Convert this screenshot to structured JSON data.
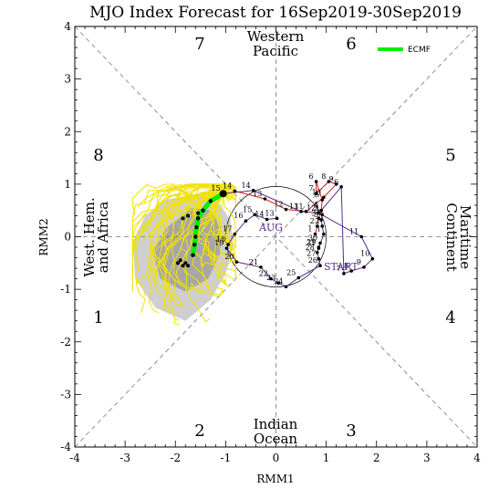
{
  "chart_data": {
    "type": "line",
    "title": "MJO Index Forecast for 16Sep2019-30Sep2019",
    "xlabel": "RMM1",
    "ylabel": "RMM2",
    "xlim": [
      -4,
      4
    ],
    "ylim": [
      -4,
      4
    ],
    "xticks": [
      "-4",
      "-3",
      "-2",
      "-1",
      "0",
      "1",
      "2",
      "3",
      "4"
    ],
    "yticks": [
      "-4",
      "-3",
      "-2",
      "-1",
      "0",
      "1",
      "2",
      "3",
      "4"
    ],
    "grid": false,
    "legend": {
      "position": "top-right",
      "entries": [
        "ECMF"
      ]
    },
    "colors": {
      "observed_aug": "#d02020",
      "observed_sep": "#5a2b8c",
      "ensemble": "#f2e200",
      "ensemble_mean": "#00ee00",
      "spread_outer": "#cfcfcf",
      "spread_inner": "#a6a6a6"
    },
    "phase_numbers": [
      "1",
      "2",
      "3",
      "4",
      "5",
      "6",
      "7",
      "8"
    ],
    "regions": {
      "western_pacific": [
        "Western",
        "Pacific"
      ],
      "indian_ocean": [
        "Indian",
        "Ocean"
      ],
      "maritime_continent": [
        "Maritime",
        "Continent"
      ],
      "west_hem_africa": [
        "West. Hem.",
        "and Africa"
      ]
    },
    "path_labels": {
      "aug": "AUG",
      "start": "START"
    },
    "observed_aug": [
      {
        "d": "1",
        "x": 0.78,
        "y": 0.05
      },
      {
        "d": "2",
        "x": 0.82,
        "y": 0.2
      },
      {
        "d": "3",
        "x": 0.85,
        "y": 0.35
      },
      {
        "d": "4",
        "x": 0.9,
        "y": 0.5
      },
      {
        "d": "5",
        "x": 0.92,
        "y": 0.7
      },
      {
        "d": "6",
        "x": 0.8,
        "y": 1.05
      },
      {
        "d": "7",
        "x": 0.8,
        "y": 0.82
      },
      {
        "d": "8",
        "x": 1.05,
        "y": 1.05
      },
      {
        "d": "9",
        "x": 1.2,
        "y": 1.0
      },
      {
        "d": "10",
        "x": 0.95,
        "y": 0.75
      },
      {
        "d": "11",
        "x": 0.6,
        "y": 0.48
      },
      {
        "d": "12",
        "x": 0.2,
        "y": 0.52
      },
      {
        "d": "13",
        "x": -0.22,
        "y": 0.72
      },
      {
        "d": "14",
        "x": -0.82,
        "y": 0.87
      }
    ],
    "observed_sep": [
      {
        "d": "13",
        "x": 0.02,
        "y": 0.35
      },
      {
        "d": "14",
        "x": -0.18,
        "y": 0.33
      },
      {
        "d": "15",
        "x": -0.42,
        "y": 0.42
      },
      {
        "d": "16",
        "x": -0.6,
        "y": 0.3
      },
      {
        "d": "17",
        "x": -0.82,
        "y": 0.05
      },
      {
        "d": "18",
        "x": -0.95,
        "y": -0.15
      },
      {
        "d": "19",
        "x": -0.98,
        "y": -0.22
      },
      {
        "d": "20",
        "x": -0.78,
        "y": -0.48
      },
      {
        "d": "21",
        "x": -0.3,
        "y": -0.58
      },
      {
        "d": "22",
        "x": -0.1,
        "y": -0.8
      },
      {
        "d": "23",
        "x": 0.05,
        "y": -0.88
      },
      {
        "d": "24",
        "x": 0.2,
        "y": -0.95
      },
      {
        "d": "25",
        "x": 0.45,
        "y": -0.78
      },
      {
        "d": "26",
        "x": 0.88,
        "y": -0.55
      },
      {
        "d": "27",
        "x": 0.85,
        "y": -0.42
      },
      {
        "d": "28",
        "x": 0.82,
        "y": -0.3
      },
      {
        "d": "29",
        "x": 0.85,
        "y": -0.2
      },
      {
        "d": "30",
        "x": 0.88,
        "y": -0.12
      },
      {
        "d": "31",
        "x": 0.85,
        "y": -0.22
      },
      {
        "d": "1",
        "x": 0.95,
        "y": 0.05
      },
      {
        "d": "2",
        "x": 0.92,
        "y": 0.2
      },
      {
        "d": "3",
        "x": 0.9,
        "y": 0.32
      },
      {
        "d": "4",
        "x": 0.92,
        "y": 0.42
      },
      {
        "d": "5",
        "x": 0.9,
        "y": 0.5
      },
      {
        "d": "6",
        "x": 1.3,
        "y": 0.95
      },
      {
        "d": "7",
        "x": 1.35,
        "y": -0.7
      },
      {
        "d": "8",
        "x": 1.5,
        "y": -0.65
      },
      {
        "d": "9",
        "x": 1.75,
        "y": -0.58
      },
      {
        "d": "10",
        "x": 1.92,
        "y": -0.42
      },
      {
        "d": "11",
        "x": 1.7,
        "y": 0.0
      },
      {
        "d": "12",
        "x": 0.85,
        "y": 0.45
      },
      {
        "d": "13",
        "x": 0.5,
        "y": 0.48
      },
      {
        "d": "14",
        "x": -0.45,
        "y": 0.88
      },
      {
        "d": "15",
        "x": -1.05,
        "y": 0.82
      }
    ],
    "ensemble_mean": [
      {
        "x": -1.05,
        "y": 0.82
      },
      {
        "x": -1.3,
        "y": 0.68
      },
      {
        "x": -1.45,
        "y": 0.5
      },
      {
        "x": -1.55,
        "y": 0.35
      },
      {
        "x": -1.58,
        "y": 0.18
      },
      {
        "x": -1.6,
        "y": 0.0
      },
      {
        "x": -1.62,
        "y": -0.15
      },
      {
        "x": -1.65,
        "y": -0.35
      }
    ],
    "ensemble_end_points": [
      {
        "x": -1.95,
        "y": -0.5
      },
      {
        "x": -1.85,
        "y": -0.55
      },
      {
        "x": -1.8,
        "y": -0.5
      },
      {
        "x": -1.9,
        "y": -0.45
      },
      {
        "x": -1.75,
        "y": -0.55
      },
      {
        "x": -1.55,
        "y": 0.45
      },
      {
        "x": -1.75,
        "y": 0.4
      },
      {
        "x": -1.85,
        "y": 0.35
      }
    ],
    "spread_outer": [
      [
        -2.6,
        0.4
      ],
      [
        -2.2,
        0.7
      ],
      [
        -1.4,
        0.85
      ],
      [
        -1.1,
        0.6
      ],
      [
        -0.9,
        0.3
      ],
      [
        -0.85,
        -0.2
      ],
      [
        -1.0,
        -0.7
      ],
      [
        -1.3,
        -1.2
      ],
      [
        -1.8,
        -1.6
      ],
      [
        -2.4,
        -1.35
      ],
      [
        -2.8,
        -0.8
      ],
      [
        -2.85,
        -0.1
      ]
    ],
    "spread_inner": [
      [
        -2.2,
        0.15
      ],
      [
        -1.7,
        0.55
      ],
      [
        -1.3,
        0.5
      ],
      [
        -1.1,
        0.2
      ],
      [
        -1.1,
        -0.3
      ],
      [
        -1.35,
        -0.8
      ],
      [
        -1.8,
        -1.05
      ],
      [
        -2.3,
        -0.8
      ],
      [
        -2.45,
        -0.3
      ]
    ]
  }
}
